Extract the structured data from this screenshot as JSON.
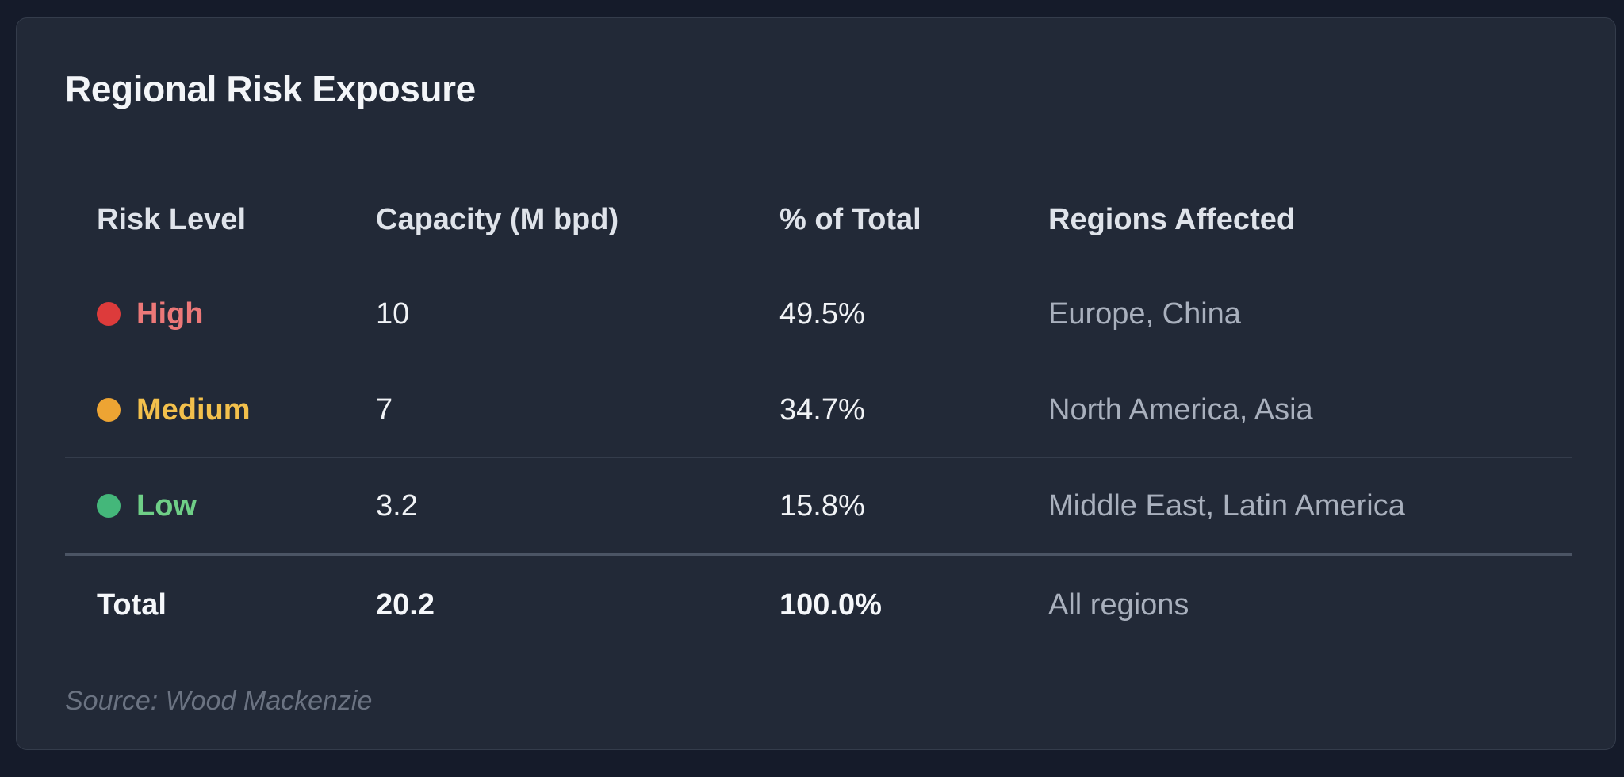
{
  "title": "Regional Risk Exposure",
  "colors": {
    "high": "#dd3b3b",
    "high_text": "#ec7878",
    "medium": "#eda433",
    "medium_text": "#f3c04c",
    "low": "#44b77a",
    "low_text": "#6fcf87"
  },
  "table": {
    "headers": [
      "Risk Level",
      "Capacity (M bpd)",
      "% of Total",
      "Regions Affected"
    ],
    "rows": [
      {
        "level": "High",
        "capacity": "10",
        "percent": "49.5%",
        "regions": "Europe, China"
      },
      {
        "level": "Medium",
        "capacity": "7",
        "percent": "34.7%",
        "regions": "North America, Asia"
      },
      {
        "level": "Low",
        "capacity": "3.2",
        "percent": "15.8%",
        "regions": "Middle East, Latin America"
      }
    ],
    "total": {
      "label": "Total",
      "capacity": "20.2",
      "percent": "100.0%",
      "regions": "All regions"
    }
  },
  "source": "Source: Wood Mackenzie"
}
